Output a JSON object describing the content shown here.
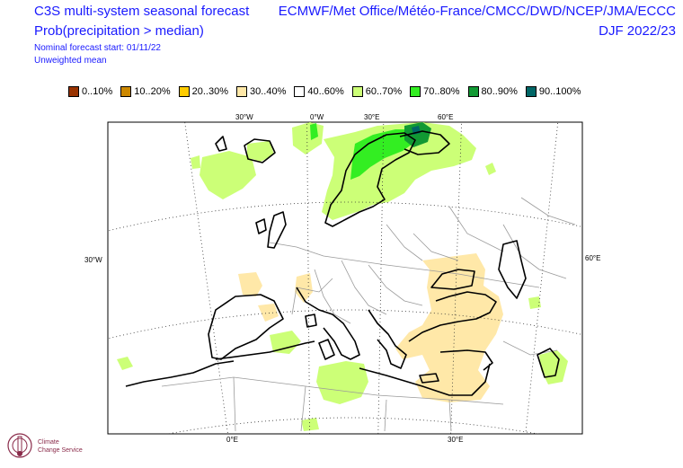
{
  "title": {
    "line1": "C3S multi-system seasonal forecast",
    "line2": "Prob(precipitation > median)",
    "line3": "Nominal forecast start: 01/11/22",
    "line4": "Unweighted mean"
  },
  "source": {
    "centres": "ECMWF/Met Office/Météo-France/CMCC/DWD/NCEP/JMA/ECCC",
    "season": "DJF 2022/23"
  },
  "legend": [
    {
      "label": "0..10%",
      "color": "#993300"
    },
    {
      "label": "10..20%",
      "color": "#cc8800"
    },
    {
      "label": "20..30%",
      "color": "#ffcc00"
    },
    {
      "label": "30..40%",
      "color": "#ffe8a8"
    },
    {
      "label": "40..60%",
      "color": "#ffffff"
    },
    {
      "label": "60..70%",
      "color": "#ccff77"
    },
    {
      "label": "70..80%",
      "color": "#33ee22"
    },
    {
      "label": "80..90%",
      "color": "#119933"
    },
    {
      "label": "90..100%",
      "color": "#006666"
    }
  ],
  "graticule_labels": {
    "top": [
      "30°W",
      "0°W",
      "30°E",
      "60°E"
    ],
    "bottom": [
      "0°E",
      "30°E"
    ],
    "left": "30°W",
    "right": "60°E"
  },
  "logo": {
    "text1": "Climate",
    "text2": "Change Service"
  }
}
